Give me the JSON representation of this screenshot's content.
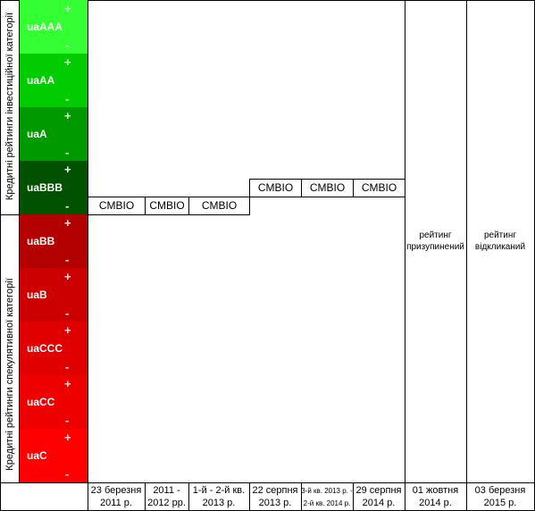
{
  "side_labels": [
    "Кредитні рейтинги інвестиційної категорії",
    "Кредитні рейтинги спекулятивної категорії"
  ],
  "ratings": [
    {
      "name": "uaAAA",
      "plus": "+",
      "minus": "-",
      "color": "#33ff33"
    },
    {
      "name": "uaAA",
      "plus": "+",
      "minus": "-",
      "color": "#00cc00"
    },
    {
      "name": "uaA",
      "plus": "+",
      "minus": "-",
      "color": "#009900"
    },
    {
      "name": "uaBBB",
      "plus": "+",
      "minus": "-",
      "color": "#005200"
    },
    {
      "name": "uaBB",
      "plus": "+",
      "minus": "-",
      "color": "#b30000"
    },
    {
      "name": "uaB",
      "plus": "+",
      "minus": "-",
      "color": "#cc0000"
    },
    {
      "name": "uaCCC",
      "plus": "+",
      "minus": "-",
      "color": "#e00000"
    },
    {
      "name": "uaCC",
      "plus": "+",
      "minus": "-",
      "color": "#ee0000"
    },
    {
      "name": "uaC",
      "plus": "+",
      "minus": "-",
      "color": "#ff0000"
    }
  ],
  "columns": [
    {
      "rating": "CMBIO",
      "date": [
        "23 березня",
        "2011 р."
      ]
    },
    {
      "rating": "CMBIO",
      "date": [
        "2011 -",
        "2012 рр."
      ]
    },
    {
      "rating": "CMBIO",
      "date": [
        "1-й - 2-й кв.",
        "2013 р."
      ]
    },
    {
      "rating": "CMBIO",
      "date": [
        "22 серпня",
        "2013 р."
      ]
    },
    {
      "rating": "CMBIO",
      "date": [
        "3-й кв. 2013 р. -",
        "2-й кв. 2014 р."
      ]
    },
    {
      "rating": "CMBIO",
      "date": [
        "29 серпня",
        "2014 р."
      ]
    },
    {
      "status": [
        "рейтинг",
        "призупинений"
      ],
      "date": [
        "01 жовтня",
        "2014 р."
      ]
    },
    {
      "status": [
        "рейтинг",
        "відкликаний"
      ],
      "date": [
        "03 березня",
        "2015 р."
      ]
    }
  ]
}
